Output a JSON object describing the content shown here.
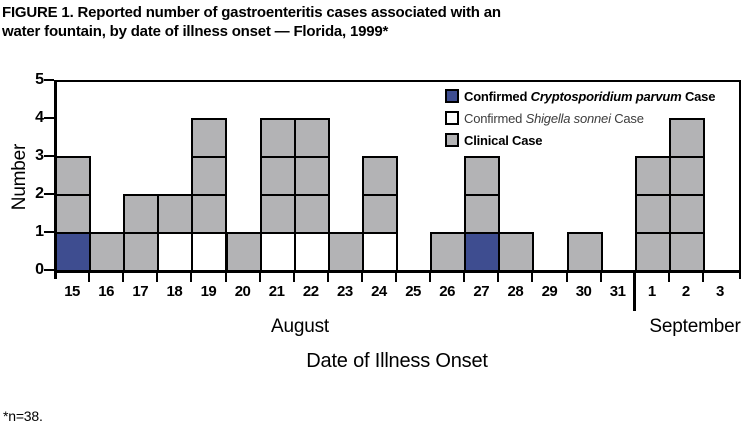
{
  "figure": {
    "title_line1": "FIGURE 1. Reported number of gastroenteritis cases associated with an",
    "title_line2": "water fountain, by date of illness onset — Florida, 1999*",
    "footnote": "*n=38."
  },
  "legend": {
    "items": [
      {
        "prefix": "Confirmed ",
        "species": "Cryptosporidium parvum",
        "suffix": " Case",
        "color": "#3E4D90",
        "bold": true
      },
      {
        "prefix": "Confirmed ",
        "species": "Shigella sonnei",
        "suffix": " Case",
        "color": "#FFFFFF",
        "bold": false
      },
      {
        "prefix": "Clinical Case",
        "species": "",
        "suffix": "",
        "color": "#B3B3B5",
        "bold": true
      }
    ]
  },
  "chart_data": {
    "type": "bar",
    "variant": "epidemic-curve-stacked-unit-squares",
    "title": "FIGURE 1. Reported number of gastroenteritis cases associated with an water fountain, by date of illness onset — Florida, 1999*",
    "xlabel": "Date of Illness Onset",
    "ylabel": "Number",
    "ylim": [
      0,
      5
    ],
    "yticks": [
      0,
      1,
      2,
      3,
      4,
      5
    ],
    "grid": false,
    "legend_position": "top-right-inside",
    "categories": [
      "15",
      "16",
      "17",
      "18",
      "19",
      "20",
      "21",
      "22",
      "23",
      "24",
      "25",
      "26",
      "27",
      "28",
      "29",
      "30",
      "31",
      "1",
      "2",
      "3"
    ],
    "month_groups": [
      {
        "label": "August",
        "span": 17
      },
      {
        "label": "September",
        "span": 3
      }
    ],
    "colors": {
      "crypto": "#3E4D90",
      "shigella": "#FFFFFF",
      "clinical": "#B3B3B5"
    },
    "series": [
      {
        "name": "Confirmed Cryptosporidium parvum Case",
        "key": "crypto",
        "values": [
          1,
          0,
          0,
          0,
          0,
          0,
          0,
          0,
          0,
          0,
          0,
          0,
          1,
          0,
          0,
          0,
          0,
          0,
          0,
          0
        ]
      },
      {
        "name": "Confirmed Shigella sonnei Case",
        "key": "shigella",
        "values": [
          0,
          0,
          0,
          1,
          1,
          0,
          1,
          1,
          0,
          1,
          0,
          0,
          0,
          0,
          0,
          0,
          0,
          0,
          0,
          0
        ]
      },
      {
        "name": "Clinical Case",
        "key": "clinical",
        "values": [
          2,
          1,
          2,
          1,
          3,
          1,
          3,
          3,
          1,
          2,
          0,
          1,
          2,
          1,
          0,
          1,
          0,
          3,
          4,
          0
        ]
      }
    ],
    "stacks_bottom_to_top": [
      [
        "crypto",
        "clinical",
        "clinical"
      ],
      [
        "clinical"
      ],
      [
        "clinical",
        "clinical"
      ],
      [
        "shigella",
        "clinical"
      ],
      [
        "shigella",
        "clinical",
        "clinical",
        "clinical"
      ],
      [
        "clinical"
      ],
      [
        "shigella",
        "clinical",
        "clinical",
        "clinical"
      ],
      [
        "shigella",
        "clinical",
        "clinical",
        "clinical"
      ],
      [
        "clinical"
      ],
      [
        "shigella",
        "clinical",
        "clinical"
      ],
      [],
      [
        "clinical"
      ],
      [
        "crypto",
        "clinical",
        "clinical"
      ],
      [
        "clinical"
      ],
      [],
      [
        "clinical"
      ],
      [],
      [
        "clinical",
        "clinical",
        "clinical"
      ],
      [
        "clinical",
        "clinical",
        "clinical",
        "clinical"
      ],
      []
    ],
    "total_n": 38
  }
}
